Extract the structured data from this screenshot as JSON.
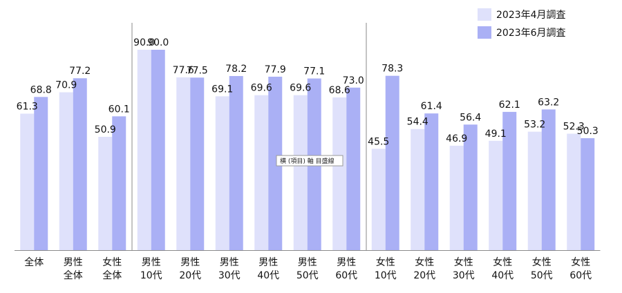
{
  "chart_data": {
    "type": "bar",
    "title": "",
    "xlabel": "",
    "ylabel": "",
    "ylim": [
      0,
      100
    ],
    "grid": false,
    "legend_position": "top-right",
    "categories": [
      [
        "全体"
      ],
      [
        "男性",
        "全体"
      ],
      [
        "女性",
        "全体"
      ],
      [
        "男性",
        "10代"
      ],
      [
        "男性",
        "20代"
      ],
      [
        "男性",
        "30代"
      ],
      [
        "男性",
        "40代"
      ],
      [
        "男性",
        "50代"
      ],
      [
        "男性",
        "60代"
      ],
      [
        "女性",
        "10代"
      ],
      [
        "女性",
        "20代"
      ],
      [
        "女性",
        "30代"
      ],
      [
        "女性",
        "40代"
      ],
      [
        "女性",
        "50代"
      ],
      [
        "女性",
        "60代"
      ]
    ],
    "series": [
      {
        "name": "2023年4月調査",
        "color": "#dfe1fb",
        "values": [
          61.3,
          70.9,
          50.9,
          90.0,
          77.6,
          69.1,
          69.6,
          69.6,
          68.6,
          45.5,
          54.4,
          46.9,
          49.1,
          53.2,
          52.3
        ]
      },
      {
        "name": "2023年6月調査",
        "color": "#aab0f5",
        "values": [
          68.8,
          77.2,
          60.1,
          90.0,
          77.5,
          78.2,
          77.9,
          77.1,
          73.0,
          78.3,
          61.4,
          56.4,
          62.1,
          63.2,
          50.3
        ]
      }
    ],
    "separators_after_index": [
      2,
      8
    ],
    "tooltip": "横 (項目) 軸 目盛線"
  }
}
